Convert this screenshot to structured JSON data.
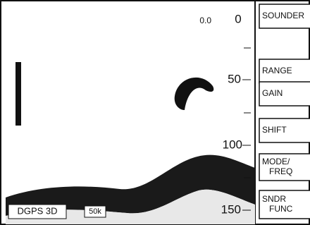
{
  "depth_readout": "0.0",
  "depth_scale": [
    "0",
    "50",
    "100",
    "150"
  ],
  "buttons": [
    {
      "lines": [
        "SOUNDER"
      ]
    },
    {
      "lines": [
        "RANGE"
      ]
    },
    {
      "lines": [
        "GAIN"
      ]
    },
    {
      "lines": [
        "SHIFT"
      ]
    },
    {
      "lines": [
        "MODE/",
        "FREQ"
      ]
    },
    {
      "lines": [
        "SNDR",
        "FUNC"
      ]
    }
  ],
  "status": {
    "position_fix": "DGPS 3D",
    "frequency": "50k"
  }
}
